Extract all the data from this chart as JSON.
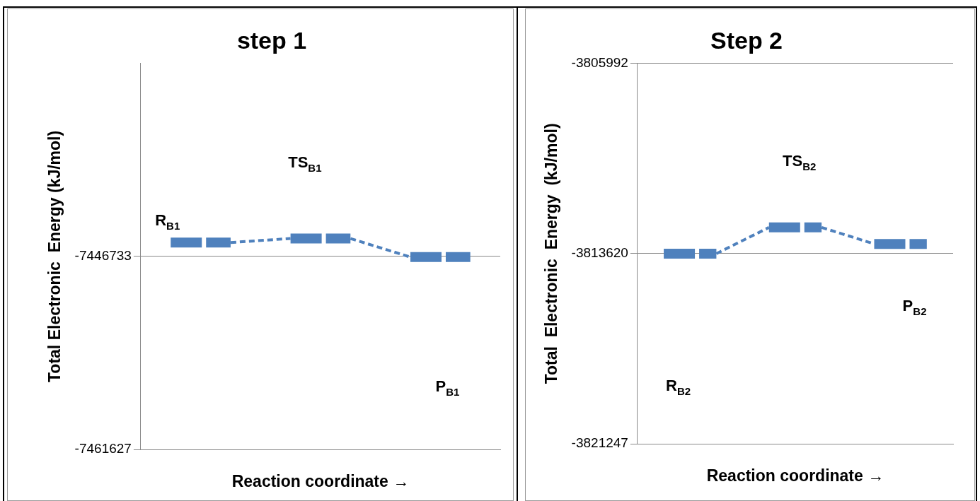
{
  "chart_data": [
    {
      "type": "line",
      "title": "step 1",
      "xlabel": "Reaction coordinate →",
      "ylabel": "Total Electronic  Energy (kJ/mol)",
      "categories": [
        null,
        null,
        null,
        null,
        null,
        null
      ],
      "series": [
        {
          "color": "#4f81bd",
          "values": [
            -7445660,
            -7445660,
            -7445350,
            -7445350,
            -7446780,
            -7446780
          ]
        }
      ],
      "ylim": [
        -7461627,
        -7431839
      ],
      "yticks": [
        -7461627,
        -7446733
      ],
      "grid": "y",
      "legend": false,
      "marker": "none",
      "line_style": "dashed",
      "annotations": [
        "R$_{B1}$",
        "TS$_{B1}$",
        "P$_{B1}$"
      ]
    },
    {
      "type": "line",
      "title": "Step 2",
      "xlabel": "Reaction coordinate →",
      "ylabel": "Total  Electronic  Energy  (kJ/mol)",
      "categories": [
        null,
        null,
        null,
        null,
        null,
        null
      ],
      "series": [
        {
          "color": "#4f81bd",
          "values": [
            -3813620,
            -3813620,
            -3812570,
            -3812570,
            -3813230,
            -3813230
          ]
        }
      ],
      "ylim": [
        -3821247,
        -3805992
      ],
      "yticks": [
        -3821247,
        -3813620,
        -3805992
      ],
      "grid": "y",
      "legend": false,
      "marker": "none",
      "line_style": "dashed",
      "annotations": [
        "R$_{B2}$",
        "TS$_{B2}$",
        "P$_{B2}$"
      ]
    }
  ]
}
